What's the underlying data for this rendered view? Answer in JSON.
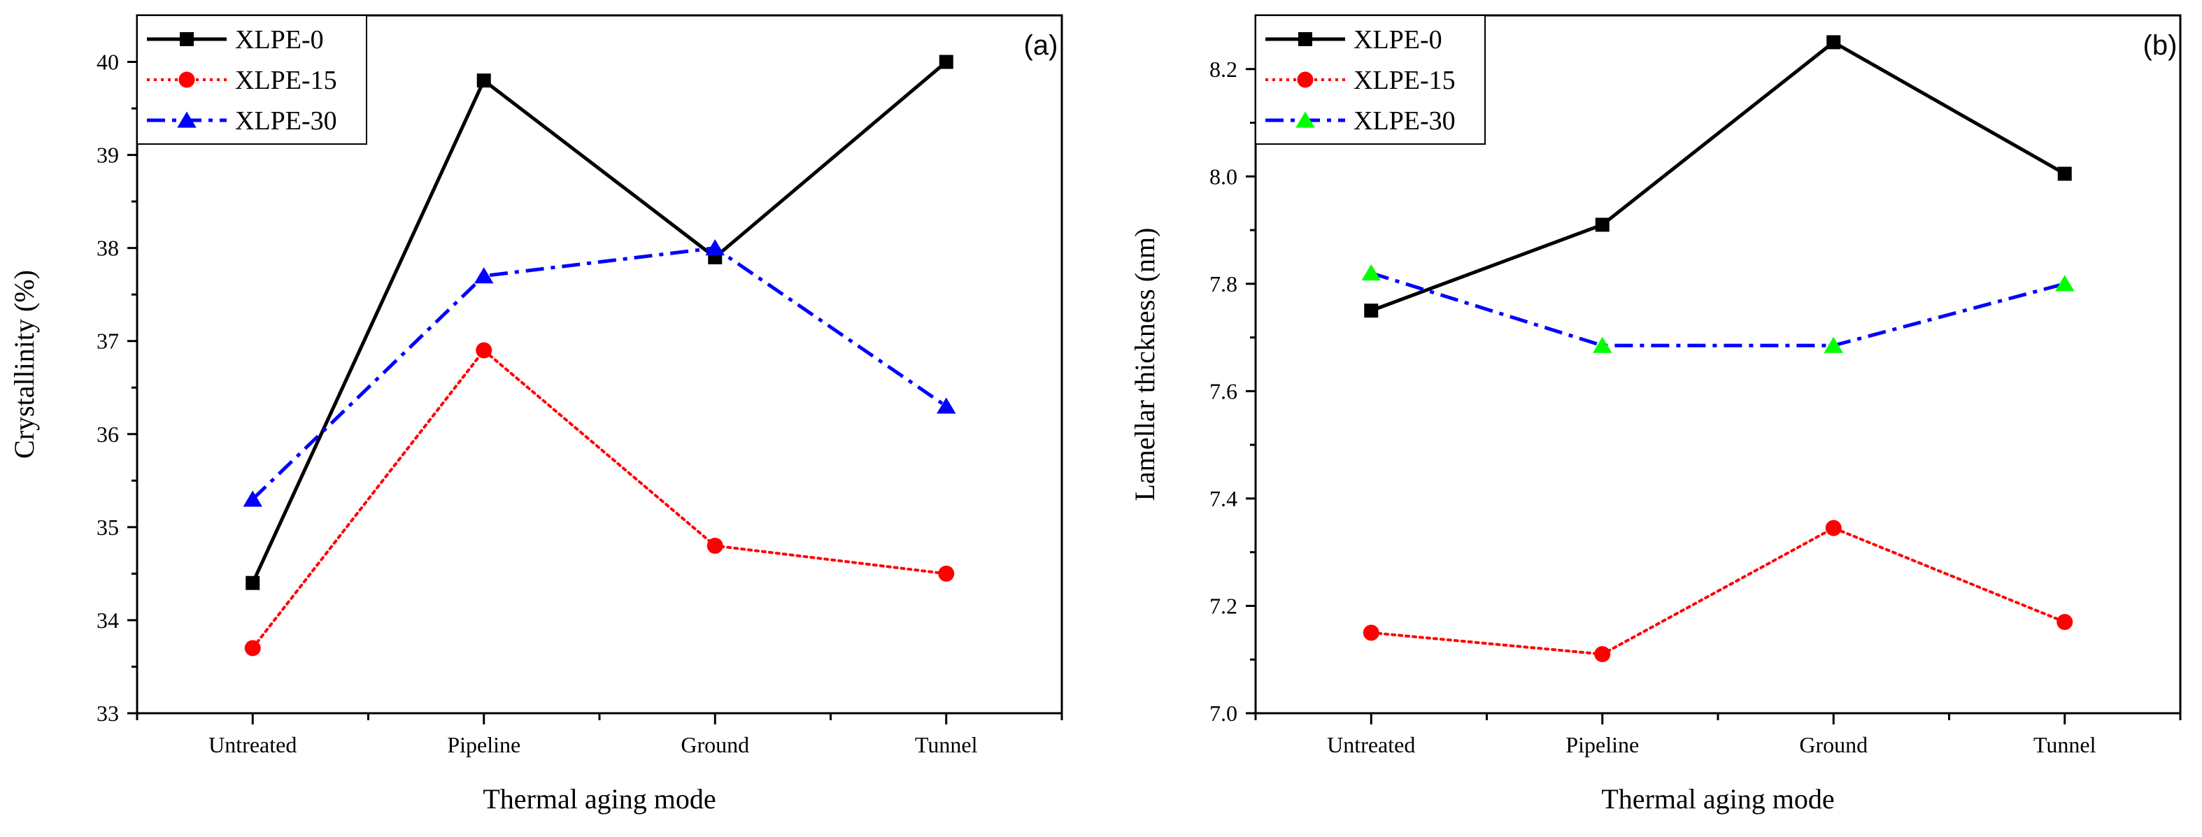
{
  "chart_data": [
    {
      "type": "line",
      "panel_label": "(a)",
      "categories": [
        "Untreated",
        "Pipeline",
        "Ground",
        "Tunnel"
      ],
      "xlabel": "Thermal aging mode",
      "ylabel": "Crystallinity (%)",
      "ylim": [
        33,
        40.5
      ],
      "yticks": [
        33,
        34,
        35,
        36,
        37,
        38,
        39,
        40
      ],
      "ytick_labels": [
        "33",
        "34",
        "35",
        "36",
        "37",
        "38",
        "39",
        "40"
      ],
      "legend_position": "top-left",
      "series": [
        {
          "name": "XLPE-0",
          "values": [
            34.4,
            39.8,
            37.9,
            40.0
          ],
          "color": "#000000",
          "marker": "square",
          "dash": "solid"
        },
        {
          "name": "XLPE-15",
          "values": [
            33.7,
            36.9,
            34.8,
            34.5
          ],
          "color": "#ff0000",
          "marker": "circle",
          "dash": "dot"
        },
        {
          "name": "XLPE-30",
          "values": [
            35.3,
            37.7,
            38.0,
            36.3
          ],
          "color": "#0000ff",
          "marker": "triangle",
          "dash": "dashdot"
        }
      ]
    },
    {
      "type": "line",
      "panel_label": "(b)",
      "categories": [
        "Untreated",
        "Pipeline",
        "Ground",
        "Tunnel"
      ],
      "xlabel": "Thermal aging mode",
      "ylabel": "Lamellar thickness (nm)",
      "ylim": [
        7.0,
        8.3
      ],
      "yticks": [
        7.0,
        7.2,
        7.4,
        7.6,
        7.8,
        8.0,
        8.2
      ],
      "ytick_labels": [
        "7.0",
        "7.2",
        "7.4",
        "7.6",
        "7.8",
        "8.0",
        "8.2"
      ],
      "legend_position": "top-left",
      "series": [
        {
          "name": "XLPE-0",
          "values": [
            7.75,
            7.91,
            8.25,
            8.005
          ],
          "color": "#000000",
          "marker": "square",
          "dash": "solid"
        },
        {
          "name": "XLPE-15",
          "values": [
            7.15,
            7.11,
            7.345,
            7.17
          ],
          "color": "#ff0000",
          "marker": "circle",
          "dash": "dot"
        },
        {
          "name": "XLPE-30",
          "values": [
            7.82,
            7.685,
            7.685,
            7.8
          ],
          "color": "#0000ff",
          "marker_color": "#00ff00",
          "marker": "triangle",
          "dash": "dashdot"
        }
      ]
    }
  ]
}
